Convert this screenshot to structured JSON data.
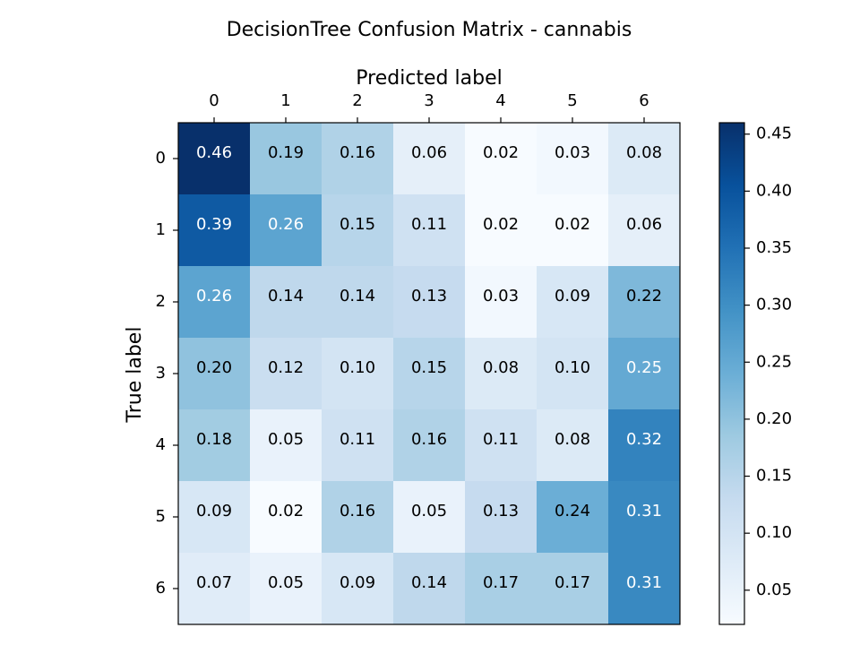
{
  "chart_data": {
    "type": "heatmap",
    "title": "DecisionTree Confusion Matrix - cannabis",
    "xlabel": "Predicted label",
    "ylabel": "True label",
    "x_labels": [
      "0",
      "1",
      "2",
      "3",
      "4",
      "5",
      "6"
    ],
    "y_labels": [
      "0",
      "1",
      "2",
      "3",
      "4",
      "5",
      "6"
    ],
    "values": [
      [
        0.46,
        0.19,
        0.16,
        0.06,
        0.02,
        0.03,
        0.08
      ],
      [
        0.39,
        0.26,
        0.15,
        0.11,
        0.02,
        0.02,
        0.06
      ],
      [
        0.26,
        0.14,
        0.14,
        0.13,
        0.03,
        0.09,
        0.22
      ],
      [
        0.2,
        0.12,
        0.1,
        0.15,
        0.08,
        0.1,
        0.25
      ],
      [
        0.18,
        0.05,
        0.11,
        0.16,
        0.11,
        0.08,
        0.32
      ],
      [
        0.09,
        0.02,
        0.16,
        0.05,
        0.13,
        0.24,
        0.31
      ],
      [
        0.07,
        0.05,
        0.09,
        0.14,
        0.17,
        0.17,
        0.31
      ]
    ],
    "cell_labels": [
      [
        "0.46",
        "0.19",
        "0.16",
        "0.06",
        "0.02",
        "0.03",
        "0.08"
      ],
      [
        "0.39",
        "0.26",
        "0.15",
        "0.11",
        "0.02",
        "0.02",
        "0.06"
      ],
      [
        "0.26",
        "0.14",
        "0.14",
        "0.13",
        "0.03",
        "0.09",
        "0.22"
      ],
      [
        "0.20",
        "0.12",
        "0.10",
        "0.15",
        "0.08",
        "0.10",
        "0.25"
      ],
      [
        "0.18",
        "0.05",
        "0.11",
        "0.16",
        "0.11",
        "0.08",
        "0.32"
      ],
      [
        "0.09",
        "0.02",
        "0.16",
        "0.05",
        "0.13",
        "0.24",
        "0.31"
      ],
      [
        "0.07",
        "0.05",
        "0.09",
        "0.14",
        "0.17",
        "0.17",
        "0.31"
      ]
    ],
    "colormap": "Blues",
    "color_range": [
      0.02,
      0.46
    ],
    "colorbar": {
      "ticks": [
        0.05,
        0.1,
        0.15,
        0.2,
        0.25,
        0.3,
        0.35,
        0.4,
        0.45
      ],
      "tick_labels": [
        "0.05",
        "0.10",
        "0.15",
        "0.20",
        "0.25",
        "0.30",
        "0.35",
        "0.40",
        "0.45"
      ]
    },
    "x_axis_position": "top",
    "grid": false,
    "text_color_light": "#ffffff",
    "text_color_dark": "#000000"
  }
}
